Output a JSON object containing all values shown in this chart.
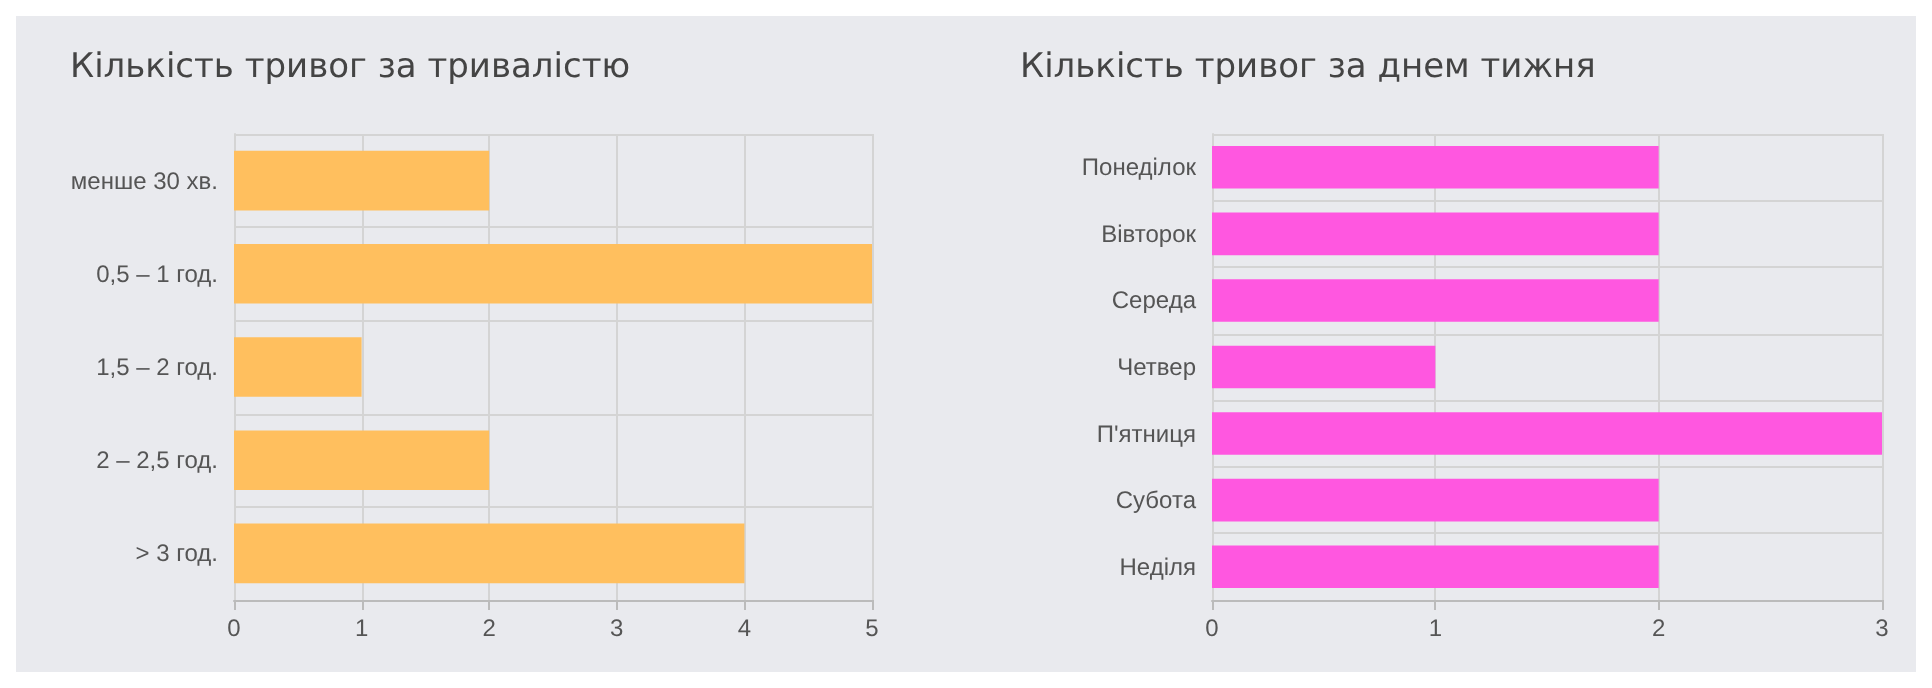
{
  "chart_data": [
    {
      "type": "bar",
      "orientation": "horizontal",
      "title": "Кількість тривог за тривалістю",
      "categories": [
        "менше 30 хв.",
        "0,5 – 1 год.",
        "1,5 – 2 год.",
        "2 – 2,5 год.",
        "> 3 год."
      ],
      "values": [
        2,
        5,
        1,
        2,
        4
      ],
      "color": "#ffbf5e",
      "xlim": [
        0,
        5
      ],
      "xticks": [
        0,
        1,
        2,
        3,
        4,
        5
      ],
      "grid": true
    },
    {
      "type": "bar",
      "orientation": "horizontal",
      "title": "Кількість тривог за днем тижня",
      "categories": [
        "Понеділок",
        "Вівторок",
        "Середа",
        "Четвер",
        "П'ятниця",
        "Субота",
        "Неділя"
      ],
      "values": [
        2,
        2,
        2,
        1,
        3,
        2,
        2
      ],
      "color": "#ff57e0",
      "xlim": [
        0,
        3
      ],
      "xticks": [
        0,
        1,
        2,
        3
      ],
      "grid": true
    }
  ]
}
